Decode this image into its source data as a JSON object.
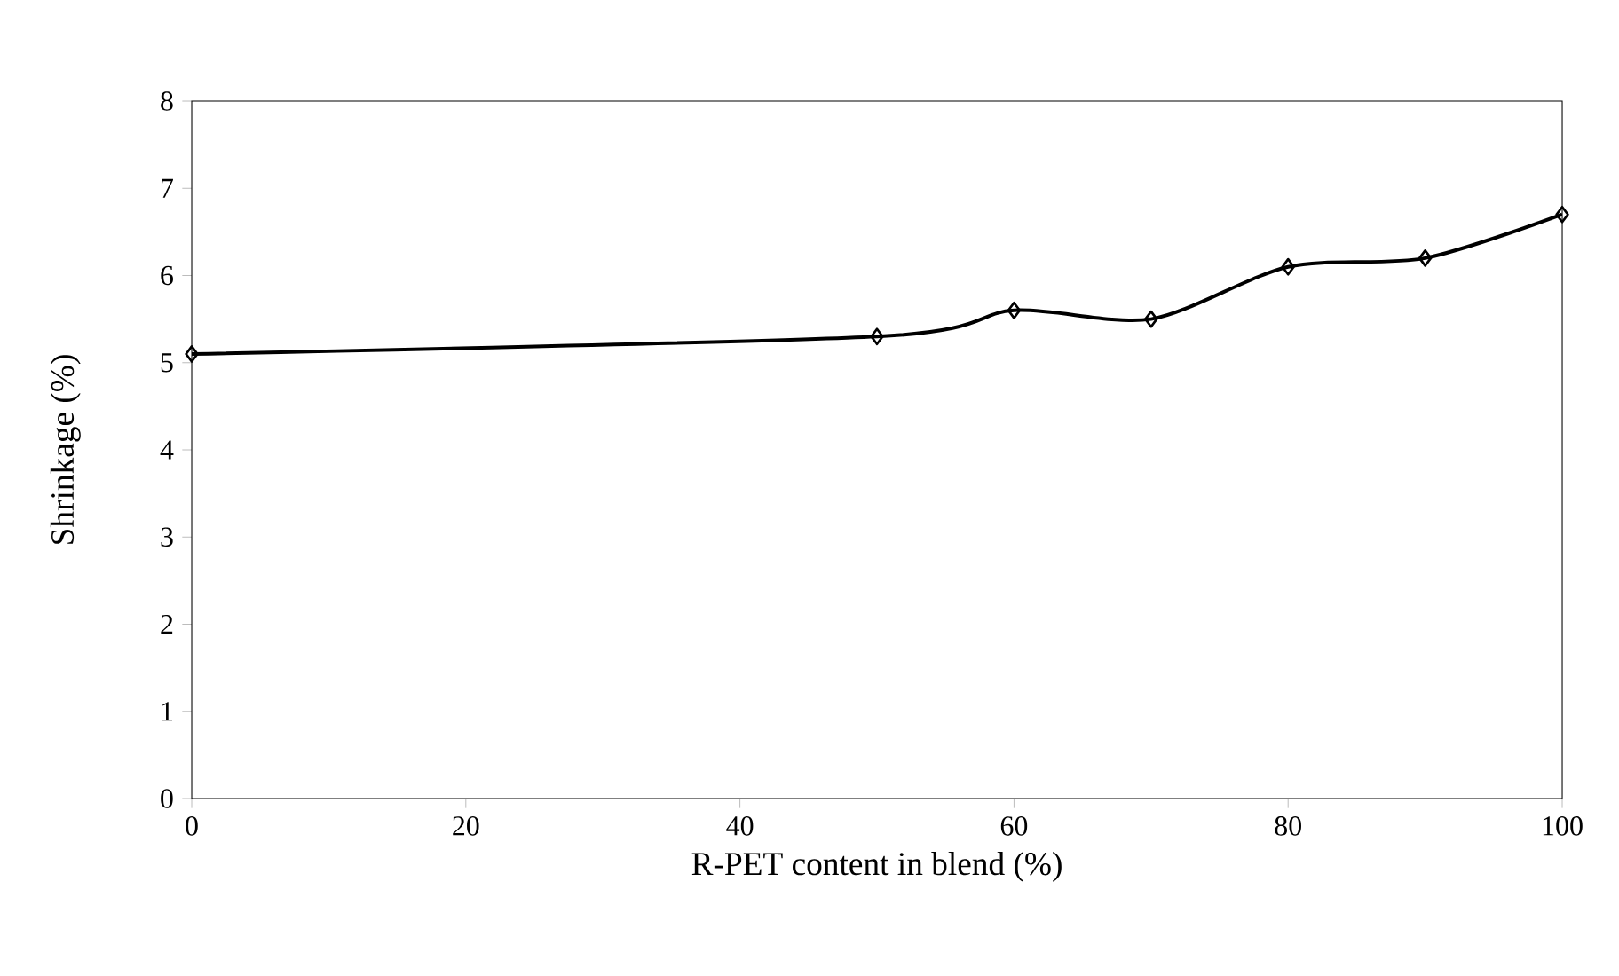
{
  "chart_data": {
    "type": "line",
    "xlabel": "R-PET content in blend (%)",
    "ylabel": "Shrinkage (%)",
    "x": [
      0,
      50,
      60,
      70,
      80,
      90,
      100
    ],
    "series": [
      {
        "color": "#000000",
        "values": [
          5.1,
          5.3,
          5.6,
          5.5,
          6.1,
          6.2,
          6.7
        ]
      }
    ],
    "xlim": [
      0,
      100
    ],
    "ylim": [
      0,
      8
    ],
    "xticks": [
      0,
      20,
      40,
      60,
      80,
      100
    ],
    "yticks": [
      0,
      1,
      2,
      3,
      4,
      5,
      6,
      7,
      8
    ],
    "marker": "diamond"
  }
}
